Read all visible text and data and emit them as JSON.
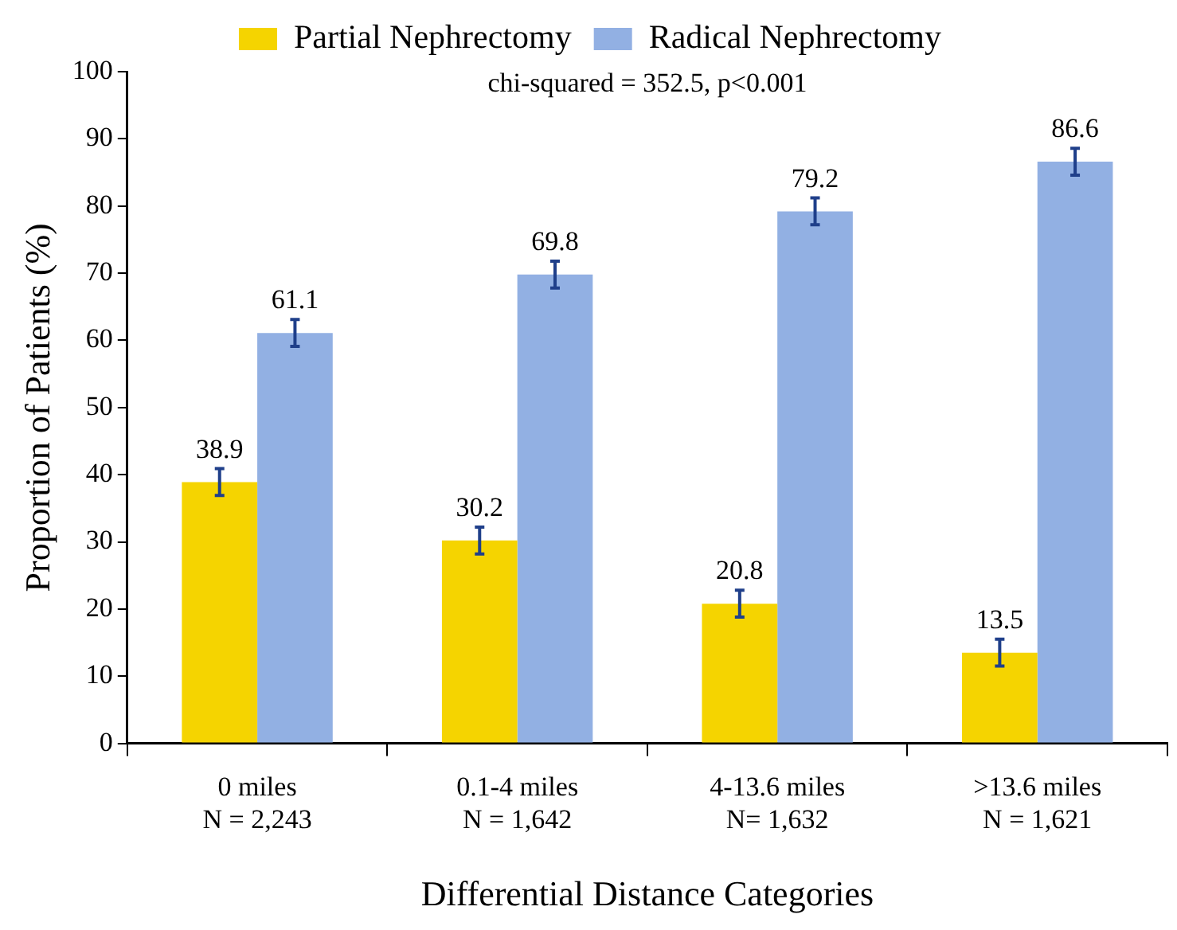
{
  "chart_data": {
    "type": "bar",
    "xlabel": "Differential Distance Categories",
    "ylabel": "Proportion of Patients (%)",
    "categories": [
      "0 miles\nN = 2,243",
      "0.1-4 miles\nN = 1,642",
      "4-13.6 miles\nN= 1,632",
      ">13.6 miles\nN = 1,621"
    ],
    "series": [
      {
        "name": "Partial Nephrectomy",
        "color": "#f5d400",
        "values": [
          38.9,
          30.2,
          20.8,
          13.5
        ],
        "errors": [
          2,
          2,
          2,
          2
        ]
      },
      {
        "name": "Radical Nephrectomy",
        "color": "#92b0e3",
        "values": [
          61.1,
          69.8,
          79.2,
          86.6
        ],
        "errors": [
          2,
          2,
          2,
          2
        ]
      }
    ],
    "ylim": [
      0,
      100
    ],
    "yticks": [
      0,
      10,
      20,
      30,
      40,
      50,
      60,
      70,
      80,
      90,
      100
    ],
    "grid": false,
    "legend": "top",
    "data_labels": true,
    "annotations": [
      "chi-squared = 352.5, p<0.001"
    ]
  }
}
